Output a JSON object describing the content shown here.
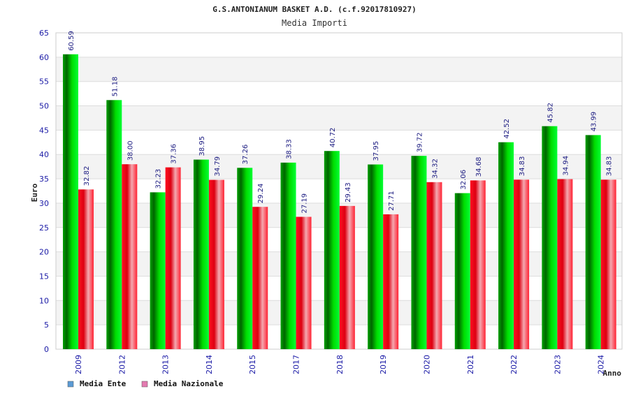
{
  "chart_data": {
    "type": "bar",
    "title": "G.S.ANTONIANUM BASKET A.D. (c.f.92017810927)",
    "subtitle": "Media Importi",
    "xlabel": "Anno",
    "ylabel": "Euro",
    "ylim": [
      0,
      65
    ],
    "y_ticks": [
      "0",
      "5",
      "10",
      "15",
      "20",
      "25",
      "30",
      "35",
      "40",
      "45",
      "50",
      "55",
      "60",
      "65"
    ],
    "grid": true,
    "legend_position": "bottom-left",
    "categories": [
      "2009",
      "2012",
      "2013",
      "2014",
      "2015",
      "2017",
      "2018",
      "2019",
      "2020",
      "2021",
      "2022",
      "2023",
      "2024"
    ],
    "series": [
      {
        "name": "Media Ente",
        "color": "#00cc00",
        "legend_color": "#5b9bd5",
        "values": [
          60.59,
          51.18,
          32.23,
          38.95,
          37.26,
          38.33,
          40.72,
          37.95,
          39.72,
          32.06,
          42.52,
          45.82,
          43.99
        ],
        "labels": [
          "60.59",
          "51.18",
          "32.23",
          "38.95",
          "37.26",
          "38.33",
          "40.72",
          "37.95",
          "39.72",
          "32.06",
          "42.52",
          "45.82",
          "43.99"
        ]
      },
      {
        "name": "Media Nazionale",
        "color": "#ee1122",
        "legend_color": "#e37ab0",
        "values": [
          32.82,
          38.0,
          37.36,
          34.79,
          29.24,
          27.19,
          29.43,
          27.71,
          34.32,
          34.68,
          34.83,
          34.94,
          34.83
        ],
        "labels": [
          "32.82",
          "38.00",
          "37.36",
          "34.79",
          "29.24",
          "27.19",
          "29.43",
          "27.71",
          "34.32",
          "34.68",
          "34.83",
          "34.94",
          "34.83"
        ]
      }
    ]
  }
}
